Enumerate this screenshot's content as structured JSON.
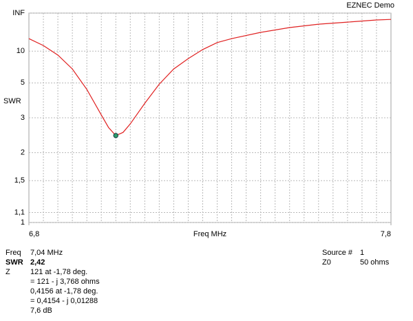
{
  "chart_data": {
    "type": "line",
    "title": "EZNEC Demo",
    "ylabel": "SWR",
    "xlabel": "Freq MHz",
    "yscale": "swr",
    "color": "#e02020",
    "grid": true,
    "x": [
      6.8,
      6.84,
      6.88,
      6.92,
      6.96,
      7.0,
      7.02,
      7.04,
      7.06,
      7.08,
      7.12,
      7.16,
      7.2,
      7.24,
      7.28,
      7.32,
      7.36,
      7.44,
      7.52,
      7.6,
      7.68,
      7.76,
      7.8
    ],
    "values": [
      15.4,
      11.9,
      8.96,
      6.5,
      4.48,
      3.11,
      2.66,
      2.42,
      2.51,
      2.78,
      3.64,
      4.9,
      6.5,
      8.2,
      10.5,
      13.2,
      15.4,
      20.7,
      28,
      36.8,
      45.5,
      59.7,
      65
    ],
    "xlim": [
      6.8,
      7.8
    ],
    "xticks": [
      {
        "value": 6.8,
        "label": "6,8"
      },
      {
        "value": 7.8,
        "label": "7,8"
      }
    ],
    "xgrid": [
      6.84,
      6.88,
      6.92,
      6.96,
      7.0,
      7.04,
      7.08,
      7.12,
      7.16,
      7.2,
      7.24,
      7.28,
      7.32,
      7.36,
      7.4,
      7.44,
      7.48,
      7.52,
      7.56,
      7.6,
      7.64,
      7.68,
      7.72,
      7.76
    ],
    "ylim": [
      1,
      null
    ],
    "yticks": [
      1,
      {
        "value": 1.1,
        "label": "1,1"
      },
      {
        "value": 1.5,
        "label": "1,5"
      },
      2,
      3,
      5,
      10,
      {
        "value": null,
        "label": "INF"
      }
    ],
    "marker": {
      "x": 7.04,
      "value": 2.42,
      "color": "#2e9e6e"
    }
  },
  "readout": {
    "freq_label": "Freq",
    "freq": "7,04 MHz",
    "swr_label": "SWR",
    "swr": "2,42",
    "z_label": "Z",
    "z_lines": [
      "121 at -1,78 deg.",
      "= 121 - j 3,768 ohms",
      "0,4156 at -1,78 deg.",
      "= 0,4154 - j 0,01288",
      "7,6 dB"
    ],
    "source_label": "Source #",
    "source": "1",
    "z0_label": "Z0",
    "z0": "50 ohms"
  }
}
